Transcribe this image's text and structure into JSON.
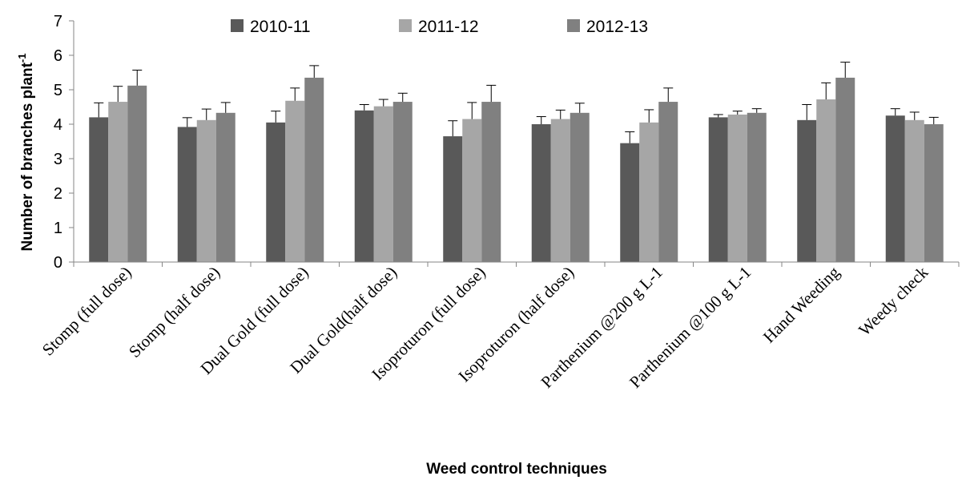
{
  "chart_data": {
    "type": "bar",
    "title": "",
    "xlabel": "Weed control techniques",
    "ylabel": "Number of branches plant",
    "ylabel_superscript": "-1",
    "ylim": [
      0,
      7
    ],
    "yticks": [
      "0",
      "1",
      "2",
      "3",
      "4",
      "5",
      "6",
      "7"
    ],
    "grid": false,
    "legend_position": "top",
    "categories": [
      "Stomp (full dose)",
      "Stomp  (half dose)",
      "Dual Gold (full dose)",
      "Dual Gold(half dose)",
      "Isoproturon (full dose)",
      "Isoproturon  (half dose)",
      "Parthenium @200 g L-1",
      "Parthenium @100 g L-1",
      "Hand Weeding",
      "Weedy check"
    ],
    "series": [
      {
        "name": "2010-11",
        "color": "#595959",
        "values": [
          4.2,
          3.92,
          4.05,
          4.4,
          3.65,
          4.0,
          3.45,
          4.2,
          4.12,
          4.25
        ],
        "errors": [
          0.42,
          0.27,
          0.33,
          0.17,
          0.45,
          0.22,
          0.33,
          0.08,
          0.45,
          0.2
        ]
      },
      {
        "name": "2011-12",
        "color": "#a6a6a6",
        "values": [
          4.65,
          4.12,
          4.68,
          4.52,
          4.15,
          4.15,
          4.05,
          4.28,
          4.72,
          4.12
        ],
        "errors": [
          0.45,
          0.32,
          0.37,
          0.2,
          0.48,
          0.26,
          0.37,
          0.1,
          0.48,
          0.23
        ]
      },
      {
        "name": "2012-13",
        "color": "#808080",
        "values": [
          5.12,
          4.33,
          5.35,
          4.65,
          4.65,
          4.33,
          4.65,
          4.33,
          5.35,
          4.0
        ],
        "errors": [
          0.45,
          0.3,
          0.35,
          0.25,
          0.48,
          0.28,
          0.4,
          0.12,
          0.45,
          0.2
        ]
      }
    ]
  }
}
